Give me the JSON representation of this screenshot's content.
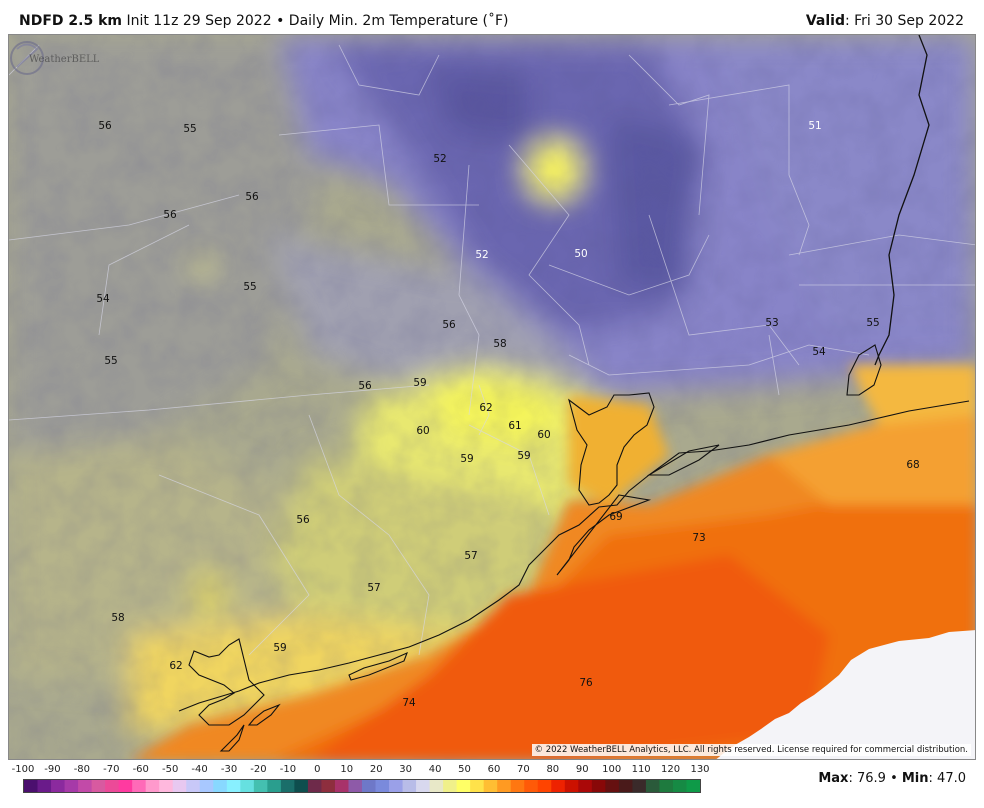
{
  "header": {
    "model": "NDFD 2.5 km",
    "init": "Init 11z 29 Sep 2022",
    "bullet": "•",
    "product": "Daily Min. 2m Temperature (˚F)",
    "valid_label": "Valid",
    "valid_value": ": Fri 30 Sep 2022"
  },
  "copyright": "© 2022 WeatherBELL Analytics, LLC. All rights reserved. License required for commercial distribution.",
  "logo_text": "WeatherBELL",
  "legend": {
    "ticks": [
      "-100",
      "-90",
      "-80",
      "-70",
      "-60",
      "-50",
      "-40",
      "-30",
      "-20",
      "-10",
      "0",
      "10",
      "20",
      "30",
      "40",
      "50",
      "60",
      "70",
      "80",
      "90",
      "100",
      "110",
      "120",
      "130"
    ],
    "colors": [
      "#4b0f6e",
      "#6a1b8a",
      "#8b2a9e",
      "#a63aa8",
      "#c24aa8",
      "#d85aa0",
      "#ec4a98",
      "#ff3aa0",
      "#ff6ab8",
      "#ff99cc",
      "#ffb8dd",
      "#e8c8f0",
      "#c8c8f8",
      "#a8c8ff",
      "#88d8ff",
      "#88f0ff",
      "#66e0e0",
      "#44c0b0",
      "#2a9e8e",
      "#1a6e6a",
      "#0e4e4e",
      "#6e2a4a",
      "#8e2e3e",
      "#a8326a",
      "#8e5aa8",
      "#6e78c8",
      "#7a8adc",
      "#9aa0e8",
      "#b8bce8",
      "#d8d8ee",
      "#e8e8c8",
      "#f0f08a",
      "#ffff66",
      "#ffe24a",
      "#ffbe33",
      "#ff9a22",
      "#ff7711",
      "#ff5a08",
      "#ff4400",
      "#ee2200",
      "#cc1100",
      "#aa0808",
      "#880808",
      "#661010",
      "#4a1a1a",
      "#3a2a2a",
      "#2a5a3a",
      "#1e7a3e",
      "#168a44",
      "#0e9a48"
    ]
  },
  "maxmin": {
    "max_label": "Max",
    "max_value": ": 76.9",
    "sep": "•",
    "min_label": "Min",
    "min_value": ": 47.0"
  },
  "temperature_labels": [
    {
      "text": "56",
      "tone": "dark"
    },
    {
      "text": "55",
      "tone": "dark"
    },
    {
      "text": "52",
      "tone": "dark"
    },
    {
      "text": "51",
      "tone": "light"
    },
    {
      "text": "56",
      "tone": "dark"
    },
    {
      "text": "56",
      "tone": "dark"
    },
    {
      "text": "52",
      "tone": "light"
    },
    {
      "text": "50",
      "tone": "light"
    },
    {
      "text": "54",
      "tone": "dark"
    },
    {
      "text": "55",
      "tone": "dark"
    },
    {
      "text": "56",
      "tone": "dark"
    },
    {
      "text": "58",
      "tone": "dark"
    },
    {
      "text": "53",
      "tone": "dark"
    },
    {
      "text": "55",
      "tone": "dark"
    },
    {
      "text": "54",
      "tone": "dark"
    },
    {
      "text": "55",
      "tone": "dark"
    },
    {
      "text": "56",
      "tone": "dark"
    },
    {
      "text": "59",
      "tone": "dark"
    },
    {
      "text": "62",
      "tone": "dark"
    },
    {
      "text": "61",
      "tone": "dark"
    },
    {
      "text": "60",
      "tone": "dark"
    },
    {
      "text": "60",
      "tone": "dark"
    },
    {
      "text": "59",
      "tone": "dark"
    },
    {
      "text": "59",
      "tone": "dark"
    },
    {
      "text": "68",
      "tone": "dark"
    },
    {
      "text": "69",
      "tone": "dark"
    },
    {
      "text": "56",
      "tone": "dark"
    },
    {
      "text": "73",
      "tone": "dark"
    },
    {
      "text": "57",
      "tone": "dark"
    },
    {
      "text": "57",
      "tone": "dark"
    },
    {
      "text": "58",
      "tone": "dark"
    },
    {
      "text": "59",
      "tone": "dark"
    },
    {
      "text": "62",
      "tone": "dark"
    },
    {
      "text": "76",
      "tone": "dark"
    },
    {
      "text": "74",
      "tone": "dark"
    }
  ]
}
